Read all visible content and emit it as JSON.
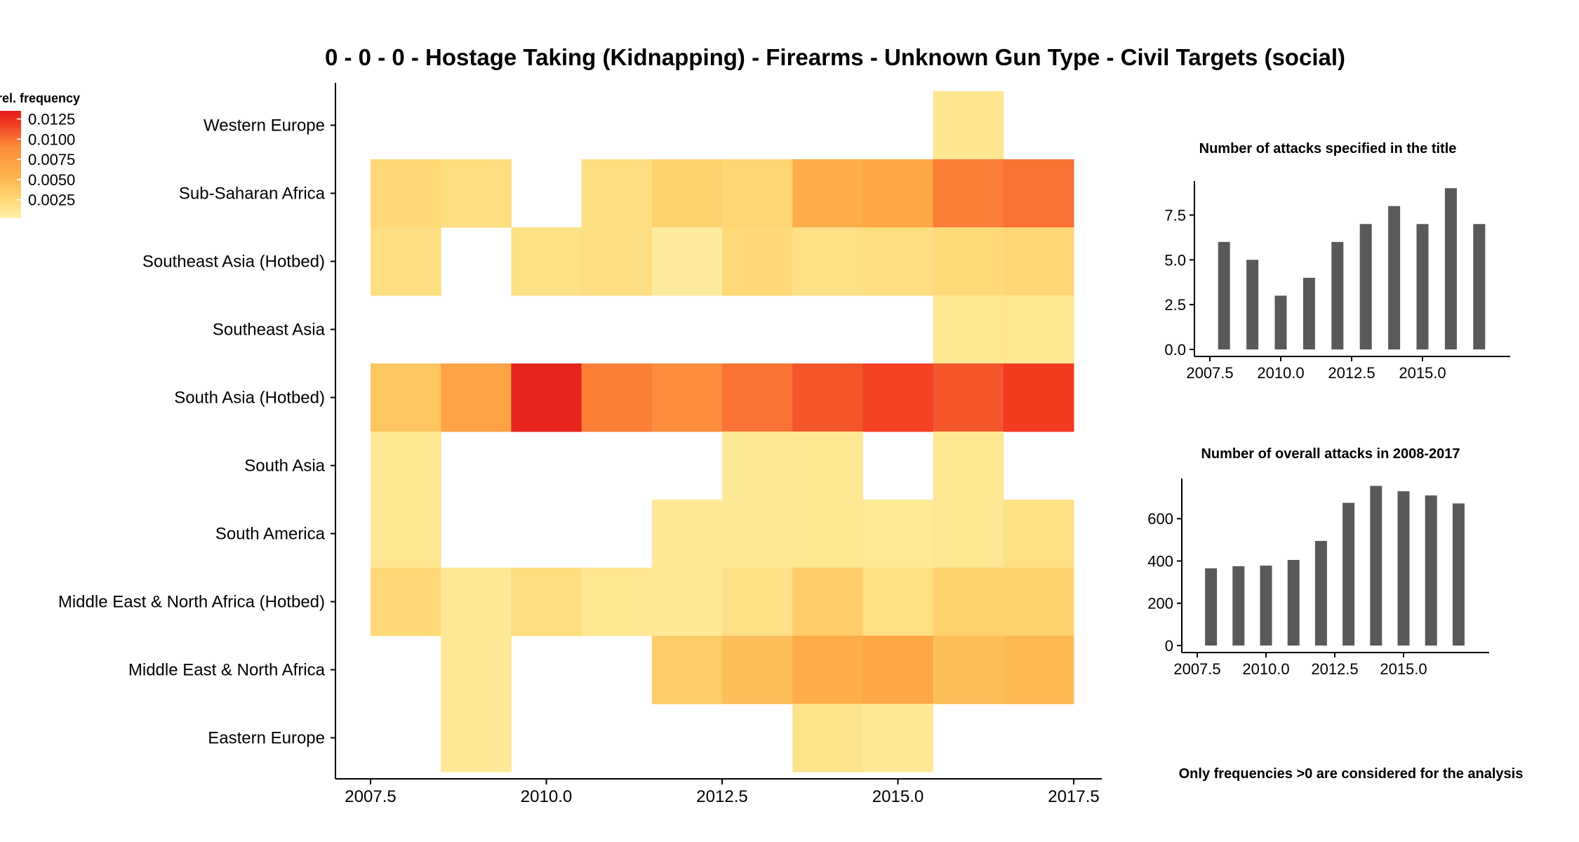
{
  "chart_data": [
    {
      "type": "heatmap",
      "title": "0 - 0 - 0 - Hostage Taking (Kidnapping) - Firearms - Unknown Gun Type - Civil Targets (social)",
      "xlim": [
        2007.5,
        2017.5
      ],
      "x_ticks": [
        2007.5,
        2010.0,
        2012.5,
        2015.0,
        2017.5
      ],
      "x_tick_labels": [
        "2007.5",
        "2010.0",
        "2012.5",
        "2015.0",
        "2017.5"
      ],
      "years": [
        2008,
        2009,
        2010,
        2011,
        2012,
        2013,
        2014,
        2015,
        2016,
        2017
      ],
      "rows": [
        "Western Europe",
        "Sub-Saharan Africa",
        "Southeast Asia (Hotbed)",
        "Southeast Asia",
        "South Asia (Hotbed)",
        "South Asia",
        "South America",
        "Middle East & North Africa (Hotbed)",
        "Middle East & North Africa",
        "Eastern Europe"
      ],
      "values": [
        [
          null,
          null,
          null,
          null,
          null,
          null,
          null,
          null,
          0.0013,
          null
        ],
        [
          0.0025,
          0.002,
          null,
          0.002,
          0.003,
          0.0027,
          0.006,
          0.0065,
          0.0095,
          0.01
        ],
        [
          0.002,
          null,
          0.0018,
          0.002,
          0.0008,
          0.0025,
          0.0018,
          0.002,
          0.0024,
          0.0027
        ],
        [
          null,
          null,
          null,
          null,
          null,
          null,
          null,
          null,
          0.0012,
          0.0012
        ],
        [
          0.004,
          0.007,
          0.013,
          0.0095,
          0.009,
          0.01,
          0.011,
          0.0118,
          0.011,
          0.012
        ],
        [
          0.0012,
          null,
          null,
          null,
          null,
          0.001,
          0.0012,
          null,
          0.0012,
          null
        ],
        [
          0.0012,
          null,
          null,
          null,
          0.001,
          0.0011,
          0.0012,
          0.0009,
          0.0012,
          0.0018
        ],
        [
          0.0025,
          0.001,
          0.002,
          0.0012,
          0.001,
          0.0018,
          0.0035,
          0.0018,
          0.003,
          0.003
        ],
        [
          null,
          0.001,
          null,
          null,
          0.0035,
          0.0045,
          0.006,
          0.0065,
          0.0045,
          0.005
        ],
        [
          null,
          0.001,
          null,
          null,
          null,
          null,
          0.0015,
          0.001,
          null,
          null
        ]
      ],
      "legend": {
        "title": "rel. frequency",
        "ticks": [
          0.0025,
          0.005,
          0.0075,
          0.01,
          0.0125
        ],
        "tick_labels": [
          "0.0025",
          "0.0050",
          "0.0075",
          "0.0100",
          "0.0125"
        ],
        "range": [
          0.0003,
          0.0135
        ],
        "placement": "top-left"
      },
      "colors": {
        "low": "#FFF0A8",
        "mid_low": "#FED976",
        "mid": "#FEB24C",
        "mid_high": "#FD8D3C",
        "high": "#F03B20",
        "top": "#E31A1C"
      }
    },
    {
      "type": "bar",
      "title": "Number of attacks specified in the title",
      "x": [
        2008,
        2009,
        2010,
        2011,
        2012,
        2013,
        2014,
        2015,
        2016,
        2017
      ],
      "values": [
        6,
        5,
        3,
        4,
        6,
        7,
        8,
        7,
        9,
        7
      ],
      "xlim": [
        2007.5,
        2017.5
      ],
      "ylim": [
        0,
        9.4
      ],
      "x_ticks": [
        2007.5,
        2010.0,
        2012.5,
        2015.0
      ],
      "x_tick_labels": [
        "2007.5",
        "2010.0",
        "2012.5",
        "2015.0"
      ],
      "y_ticks": [
        0,
        2.5,
        5,
        7.5
      ],
      "y_tick_labels": [
        "0.0",
        "2.5",
        "5.0",
        "7.5"
      ],
      "bar_color": "#595959"
    },
    {
      "type": "bar",
      "title": "Number of overall attacks in 2008-2017",
      "x": [
        2008,
        2009,
        2010,
        2011,
        2012,
        2013,
        2014,
        2015,
        2016,
        2017
      ],
      "values": [
        365,
        375,
        378,
        405,
        495,
        675,
        755,
        730,
        710,
        672
      ],
      "xlim": [
        2007.5,
        2017.5
      ],
      "ylim": [
        0,
        790
      ],
      "x_ticks": [
        2007.5,
        2010.0,
        2012.5,
        2015.0
      ],
      "x_tick_labels": [
        "2007.5",
        "2010.0",
        "2012.5",
        "2015.0"
      ],
      "y_ticks": [
        0,
        200,
        400,
        600
      ],
      "y_tick_labels": [
        "0",
        "200",
        "400",
        "600"
      ],
      "bar_color": "#595959"
    }
  ],
  "note": "Only frequencies >0 are considered for the analysis"
}
